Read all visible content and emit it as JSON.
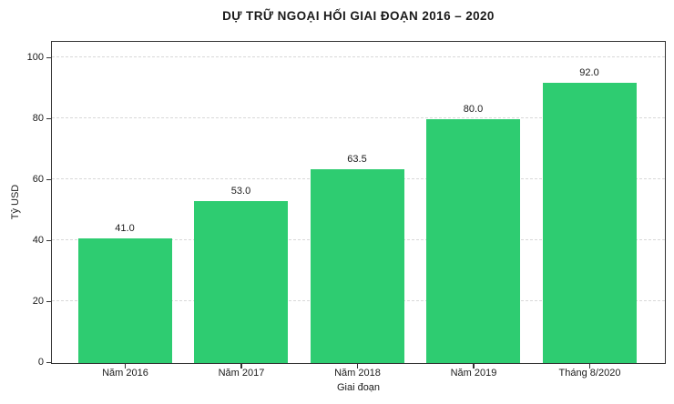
{
  "chart_data": {
    "type": "bar",
    "title": "DỰ TRỮ NGOẠI HỐI GIAI ĐOẠN 2016 – 2020",
    "categories": [
      "Năm 2016",
      "Năm 2017",
      "Năm 2018",
      "Năm 2019",
      "Tháng 8/2020"
    ],
    "values": [
      41.0,
      53.0,
      63.5,
      80.0,
      92.0
    ],
    "value_labels": [
      "41.0",
      "53.0",
      "63.5",
      "80.0",
      "92.0"
    ],
    "xlabel": "Giai đoạn",
    "ylabel": "Tỷ USD",
    "yticks": [
      0,
      20,
      40,
      60,
      80,
      100
    ],
    "ylim": [
      0,
      105
    ],
    "grid": "horizontal-dashed",
    "legend": "none",
    "colors": {
      "bar": "#2ecc71",
      "grid": "#d8d8d8",
      "axis_border": "#333333",
      "text": "#1a1a1a",
      "background": "#ffffff"
    }
  }
}
